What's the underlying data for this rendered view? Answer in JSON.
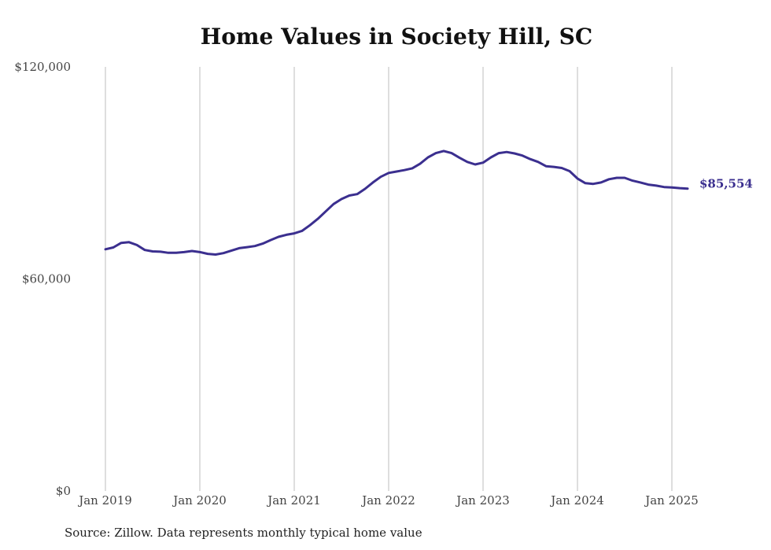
{
  "chart_data": {
    "type": "line",
    "title": "Home Values in Society Hill, SC",
    "ylim": [
      0,
      120000
    ],
    "y_ticks": [
      {
        "value": 0,
        "label": "$0"
      },
      {
        "value": 60000,
        "label": "$60,000"
      },
      {
        "value": 120000,
        "label": "$120,000"
      }
    ],
    "x_ticks": [
      {
        "value": "2019-01",
        "label": "Jan 2019"
      },
      {
        "value": "2020-01",
        "label": "Jan 2020"
      },
      {
        "value": "2021-01",
        "label": "Jan 2021"
      },
      {
        "value": "2022-01",
        "label": "Jan 2022"
      },
      {
        "value": "2023-01",
        "label": "Jan 2023"
      },
      {
        "value": "2024-01",
        "label": "Jan 2024"
      },
      {
        "value": "2025-01",
        "label": "Jan 2025"
      }
    ],
    "xlim": [
      "2019-01",
      "2025-07"
    ],
    "grid": "vertical",
    "end_label": "$85,554",
    "line_color": "#3b2f8f",
    "series": [
      {
        "x": [
          "2019-01",
          "2019-02",
          "2019-03",
          "2019-04",
          "2019-05",
          "2019-06",
          "2019-07",
          "2019-08",
          "2019-09",
          "2019-10",
          "2019-11",
          "2019-12",
          "2020-01",
          "2020-02",
          "2020-03",
          "2020-04",
          "2020-05",
          "2020-06",
          "2020-07",
          "2020-08",
          "2020-09",
          "2020-10",
          "2020-11",
          "2020-12",
          "2021-01",
          "2021-02",
          "2021-03",
          "2021-04",
          "2021-05",
          "2021-06",
          "2021-07",
          "2021-08",
          "2021-09",
          "2021-10",
          "2021-11",
          "2021-12",
          "2022-01",
          "2022-02",
          "2022-03",
          "2022-04",
          "2022-05",
          "2022-06",
          "2022-07",
          "2022-08",
          "2022-09",
          "2022-10",
          "2022-11",
          "2022-12",
          "2023-01",
          "2023-02",
          "2023-03",
          "2023-04",
          "2023-05",
          "2023-06",
          "2023-07",
          "2023-08",
          "2023-09",
          "2023-10",
          "2023-11",
          "2023-12",
          "2024-01",
          "2024-02",
          "2024-03",
          "2024-04",
          "2024-05",
          "2024-06",
          "2024-07",
          "2024-08",
          "2024-09",
          "2024-10",
          "2024-11",
          "2024-12",
          "2025-01",
          "2025-02",
          "2025-03"
        ],
        "values": [
          68400,
          68900,
          70200,
          70400,
          69600,
          68200,
          67800,
          67700,
          67400,
          67400,
          67600,
          67900,
          67600,
          67100,
          66900,
          67300,
          68000,
          68700,
          69000,
          69300,
          70000,
          71000,
          71900,
          72500,
          72900,
          73600,
          75200,
          77000,
          79100,
          81200,
          82600,
          83600,
          84000,
          85500,
          87300,
          88900,
          90000,
          90400,
          90800,
          91300,
          92600,
          94400,
          95600,
          96200,
          95600,
          94300,
          93100,
          92400,
          92900,
          94400,
          95600,
          95900,
          95500,
          94900,
          93900,
          93100,
          91900,
          91700,
          91400,
          90500,
          88400,
          87100,
          86900,
          87300,
          88200,
          88600,
          88600,
          87800,
          87300,
          86700,
          86400,
          86000,
          85900,
          85700,
          85554
        ]
      }
    ]
  },
  "source_text": "Source: Zillow. Data represents monthly typical home value"
}
